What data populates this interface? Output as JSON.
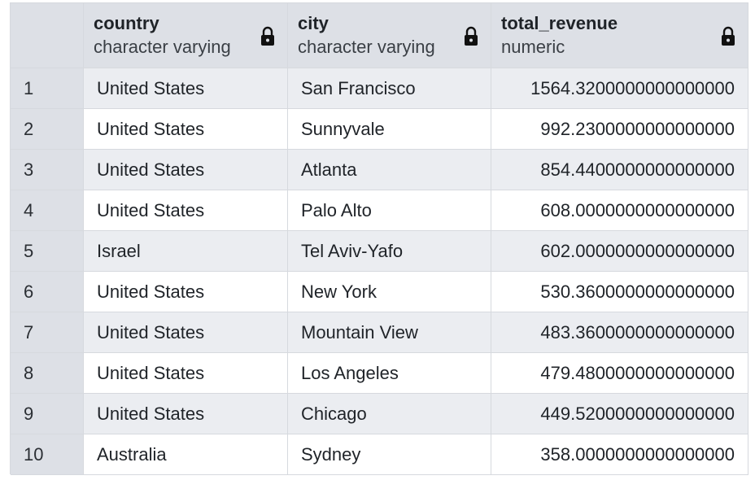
{
  "columns": [
    {
      "name": "country",
      "type": "character varying",
      "locked_icon": "lock-icon"
    },
    {
      "name": "city",
      "type": "character varying",
      "locked_icon": "lock-icon"
    },
    {
      "name": "total_revenue",
      "type": "numeric",
      "locked_icon": "lock-icon"
    }
  ],
  "rows": [
    {
      "n": "1",
      "country": "United States",
      "city": "San Francisco",
      "total_revenue": "1564.3200000000000000"
    },
    {
      "n": "2",
      "country": "United States",
      "city": "Sunnyvale",
      "total_revenue": "992.2300000000000000"
    },
    {
      "n": "3",
      "country": "United States",
      "city": "Atlanta",
      "total_revenue": "854.4400000000000000"
    },
    {
      "n": "4",
      "country": "United States",
      "city": "Palo Alto",
      "total_revenue": "608.0000000000000000"
    },
    {
      "n": "5",
      "country": "Israel",
      "city": "Tel Aviv-Yafo",
      "total_revenue": "602.0000000000000000"
    },
    {
      "n": "6",
      "country": "United States",
      "city": "New York",
      "total_revenue": "530.3600000000000000"
    },
    {
      "n": "7",
      "country": "United States",
      "city": "Mountain View",
      "total_revenue": "483.3600000000000000"
    },
    {
      "n": "8",
      "country": "United States",
      "city": "Los Angeles",
      "total_revenue": "479.4800000000000000"
    },
    {
      "n": "9",
      "country": "United States",
      "city": "Chicago",
      "total_revenue": "449.5200000000000000"
    },
    {
      "n": "10",
      "country": "Australia",
      "city": "Sydney",
      "total_revenue": "358.0000000000000000"
    }
  ],
  "colors": {
    "header_bg": "#dde0e6",
    "row_shaded_bg": "#ebedf1",
    "row_plain_bg": "#ffffff",
    "grid_line": "#d6d9de"
  }
}
